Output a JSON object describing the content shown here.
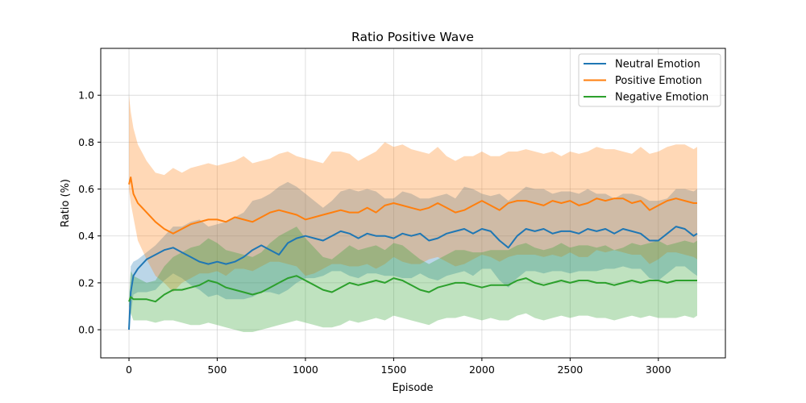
{
  "chart_data": {
    "type": "line",
    "title": "Ratio Positive Wave",
    "xlabel": "Episode",
    "ylabel": "Ratio (%)",
    "xlim": [
      -160,
      3380
    ],
    "ylim": [
      -0.12,
      1.2
    ],
    "xticks": [
      0,
      500,
      1000,
      1500,
      2000,
      2500,
      3000
    ],
    "yticks": [
      0.0,
      0.2,
      0.4,
      0.6,
      0.8,
      1.0
    ],
    "xtick_labels": [
      "0",
      "500",
      "1000",
      "1500",
      "2000",
      "2500",
      "3000"
    ],
    "ytick_labels": [
      "0.0",
      "0.2",
      "0.4",
      "0.6",
      "0.8",
      "1.0"
    ],
    "grid": true,
    "legend_position": "top-right",
    "x": [
      0,
      10,
      25,
      50,
      100,
      150,
      200,
      250,
      300,
      350,
      400,
      450,
      500,
      550,
      600,
      650,
      700,
      750,
      800,
      850,
      900,
      950,
      1000,
      1050,
      1100,
      1150,
      1200,
      1250,
      1300,
      1350,
      1400,
      1450,
      1500,
      1550,
      1600,
      1650,
      1700,
      1750,
      1800,
      1850,
      1900,
      1950,
      2000,
      2050,
      2100,
      2150,
      2200,
      2250,
      2300,
      2350,
      2400,
      2450,
      2500,
      2550,
      2600,
      2650,
      2700,
      2750,
      2800,
      2850,
      2900,
      2950,
      3000,
      3050,
      3100,
      3150,
      3200,
      3220
    ],
    "series": [
      {
        "name": "Neutral Emotion",
        "color": "#1f77b4",
        "values": [
          0.0,
          0.16,
          0.23,
          0.26,
          0.3,
          0.32,
          0.34,
          0.35,
          0.33,
          0.31,
          0.29,
          0.28,
          0.29,
          0.28,
          0.29,
          0.31,
          0.34,
          0.36,
          0.34,
          0.32,
          0.37,
          0.39,
          0.4,
          0.39,
          0.38,
          0.4,
          0.42,
          0.41,
          0.39,
          0.41,
          0.4,
          0.4,
          0.39,
          0.41,
          0.4,
          0.41,
          0.38,
          0.39,
          0.41,
          0.42,
          0.43,
          0.41,
          0.43,
          0.42,
          0.38,
          0.35,
          0.4,
          0.43,
          0.42,
          0.43,
          0.41,
          0.42,
          0.42,
          0.41,
          0.43,
          0.42,
          0.43,
          0.41,
          0.43,
          0.42,
          0.41,
          0.38,
          0.38,
          0.41,
          0.44,
          0.43,
          0.4,
          0.41
        ],
        "upper": [
          0.0,
          0.27,
          0.29,
          0.3,
          0.33,
          0.36,
          0.4,
          0.44,
          0.44,
          0.46,
          0.47,
          0.44,
          0.45,
          0.46,
          0.48,
          0.5,
          0.55,
          0.56,
          0.58,
          0.61,
          0.63,
          0.61,
          0.58,
          0.55,
          0.52,
          0.55,
          0.59,
          0.6,
          0.59,
          0.6,
          0.59,
          0.56,
          0.56,
          0.59,
          0.58,
          0.56,
          0.56,
          0.57,
          0.58,
          0.56,
          0.61,
          0.6,
          0.58,
          0.57,
          0.58,
          0.55,
          0.58,
          0.61,
          0.6,
          0.6,
          0.58,
          0.59,
          0.59,
          0.58,
          0.6,
          0.58,
          0.58,
          0.56,
          0.58,
          0.58,
          0.57,
          0.55,
          0.55,
          0.56,
          0.6,
          0.6,
          0.59,
          0.6
        ],
        "lower": [
          0.0,
          0.06,
          0.15,
          0.16,
          0.16,
          0.17,
          0.21,
          0.24,
          0.22,
          0.19,
          0.17,
          0.14,
          0.15,
          0.13,
          0.13,
          0.13,
          0.14,
          0.16,
          0.16,
          0.15,
          0.17,
          0.2,
          0.22,
          0.22,
          0.23,
          0.25,
          0.25,
          0.23,
          0.22,
          0.24,
          0.24,
          0.23,
          0.23,
          0.22,
          0.22,
          0.24,
          0.22,
          0.21,
          0.23,
          0.24,
          0.25,
          0.23,
          0.26,
          0.26,
          0.21,
          0.18,
          0.22,
          0.25,
          0.25,
          0.24,
          0.25,
          0.25,
          0.24,
          0.25,
          0.25,
          0.25,
          0.26,
          0.26,
          0.27,
          0.26,
          0.26,
          0.22,
          0.21,
          0.24,
          0.27,
          0.27,
          0.24,
          0.23
        ]
      },
      {
        "name": "Positive Emotion",
        "color": "#ff7f0e",
        "values": [
          0.62,
          0.65,
          0.58,
          0.54,
          0.5,
          0.46,
          0.43,
          0.41,
          0.43,
          0.45,
          0.46,
          0.47,
          0.47,
          0.46,
          0.48,
          0.47,
          0.46,
          0.48,
          0.5,
          0.51,
          0.5,
          0.49,
          0.47,
          0.48,
          0.49,
          0.5,
          0.51,
          0.5,
          0.5,
          0.52,
          0.5,
          0.53,
          0.54,
          0.53,
          0.52,
          0.51,
          0.52,
          0.54,
          0.52,
          0.5,
          0.51,
          0.53,
          0.55,
          0.53,
          0.51,
          0.54,
          0.55,
          0.55,
          0.54,
          0.53,
          0.55,
          0.54,
          0.55,
          0.53,
          0.54,
          0.56,
          0.55,
          0.56,
          0.56,
          0.54,
          0.55,
          0.51,
          0.53,
          0.55,
          0.56,
          0.55,
          0.54,
          0.54
        ],
        "upper": [
          1.0,
          0.93,
          0.86,
          0.79,
          0.72,
          0.67,
          0.66,
          0.69,
          0.67,
          0.69,
          0.7,
          0.71,
          0.7,
          0.71,
          0.72,
          0.74,
          0.71,
          0.72,
          0.73,
          0.75,
          0.76,
          0.74,
          0.73,
          0.72,
          0.71,
          0.76,
          0.76,
          0.75,
          0.72,
          0.74,
          0.76,
          0.8,
          0.78,
          0.79,
          0.77,
          0.76,
          0.75,
          0.78,
          0.74,
          0.72,
          0.74,
          0.74,
          0.76,
          0.74,
          0.74,
          0.76,
          0.76,
          0.77,
          0.76,
          0.75,
          0.76,
          0.74,
          0.76,
          0.75,
          0.76,
          0.78,
          0.77,
          0.77,
          0.76,
          0.75,
          0.78,
          0.75,
          0.76,
          0.78,
          0.79,
          0.79,
          0.77,
          0.78
        ],
        "lower": [
          0.6,
          0.54,
          0.48,
          0.38,
          0.3,
          0.23,
          0.2,
          0.16,
          0.2,
          0.22,
          0.24,
          0.24,
          0.25,
          0.23,
          0.26,
          0.26,
          0.25,
          0.27,
          0.29,
          0.29,
          0.28,
          0.27,
          0.23,
          0.24,
          0.26,
          0.28,
          0.28,
          0.27,
          0.27,
          0.28,
          0.26,
          0.28,
          0.31,
          0.29,
          0.28,
          0.28,
          0.3,
          0.31,
          0.29,
          0.27,
          0.28,
          0.3,
          0.32,
          0.31,
          0.29,
          0.31,
          0.32,
          0.32,
          0.32,
          0.31,
          0.32,
          0.31,
          0.33,
          0.31,
          0.31,
          0.34,
          0.33,
          0.34,
          0.33,
          0.32,
          0.32,
          0.28,
          0.3,
          0.33,
          0.33,
          0.32,
          0.31,
          0.3
        ]
      },
      {
        "name": "Negative Emotion",
        "color": "#2ca02c",
        "values": [
          0.12,
          0.14,
          0.13,
          0.13,
          0.13,
          0.12,
          0.15,
          0.17,
          0.17,
          0.18,
          0.19,
          0.21,
          0.2,
          0.18,
          0.17,
          0.16,
          0.15,
          0.16,
          0.18,
          0.2,
          0.22,
          0.23,
          0.21,
          0.19,
          0.17,
          0.16,
          0.18,
          0.2,
          0.19,
          0.2,
          0.21,
          0.2,
          0.22,
          0.21,
          0.19,
          0.17,
          0.16,
          0.18,
          0.19,
          0.2,
          0.2,
          0.19,
          0.18,
          0.19,
          0.19,
          0.19,
          0.21,
          0.22,
          0.2,
          0.19,
          0.2,
          0.21,
          0.2,
          0.21,
          0.21,
          0.2,
          0.2,
          0.19,
          0.2,
          0.21,
          0.2,
          0.21,
          0.21,
          0.2,
          0.21,
          0.21,
          0.21,
          0.21
        ],
        "upper": [
          0.14,
          0.25,
          0.23,
          0.22,
          0.2,
          0.21,
          0.27,
          0.31,
          0.33,
          0.35,
          0.36,
          0.39,
          0.37,
          0.34,
          0.33,
          0.32,
          0.31,
          0.33,
          0.37,
          0.4,
          0.42,
          0.44,
          0.39,
          0.35,
          0.31,
          0.3,
          0.33,
          0.36,
          0.34,
          0.35,
          0.36,
          0.34,
          0.37,
          0.36,
          0.33,
          0.3,
          0.28,
          0.3,
          0.32,
          0.34,
          0.34,
          0.33,
          0.33,
          0.34,
          0.34,
          0.34,
          0.36,
          0.37,
          0.35,
          0.34,
          0.35,
          0.37,
          0.35,
          0.36,
          0.36,
          0.35,
          0.36,
          0.34,
          0.35,
          0.37,
          0.36,
          0.37,
          0.38,
          0.36,
          0.37,
          0.38,
          0.37,
          0.38
        ],
        "lower": [
          0.1,
          0.07,
          0.04,
          0.04,
          0.04,
          0.03,
          0.04,
          0.04,
          0.03,
          0.02,
          0.02,
          0.03,
          0.02,
          0.01,
          0.0,
          -0.01,
          -0.01,
          0.0,
          0.01,
          0.02,
          0.03,
          0.04,
          0.03,
          0.02,
          0.01,
          0.01,
          0.02,
          0.04,
          0.03,
          0.04,
          0.05,
          0.04,
          0.06,
          0.05,
          0.04,
          0.03,
          0.02,
          0.04,
          0.05,
          0.05,
          0.06,
          0.05,
          0.04,
          0.05,
          0.04,
          0.04,
          0.06,
          0.07,
          0.05,
          0.04,
          0.05,
          0.06,
          0.05,
          0.06,
          0.06,
          0.05,
          0.05,
          0.04,
          0.05,
          0.06,
          0.05,
          0.06,
          0.05,
          0.05,
          0.05,
          0.06,
          0.05,
          0.06
        ]
      }
    ]
  }
}
